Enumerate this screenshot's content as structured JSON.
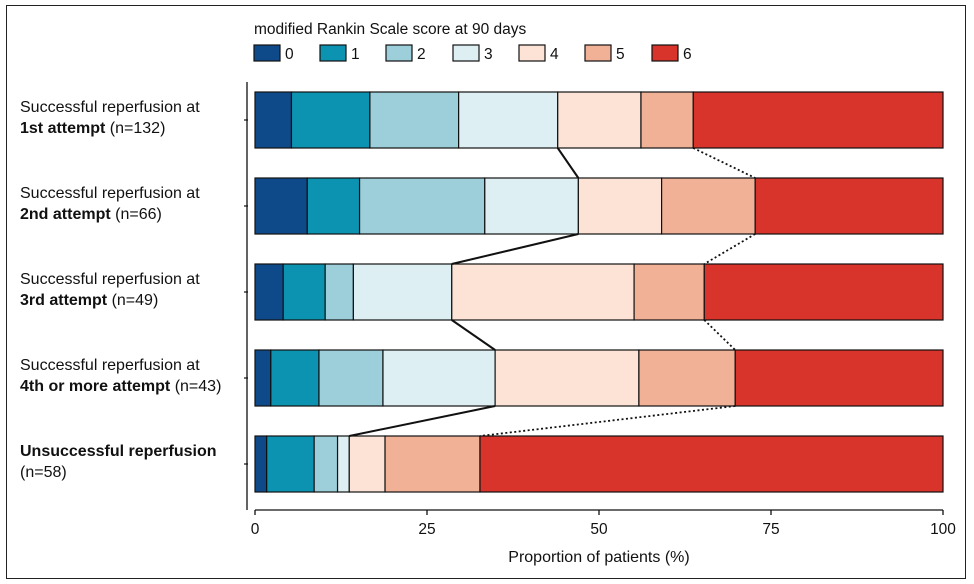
{
  "chart_data": {
    "type": "bar",
    "orientation": "horizontal",
    "stacked": true,
    "legend_title": "modified Rankin Scale score at 90 days",
    "legend_position": "top",
    "xlabel": "Proportion of patients (%)",
    "xlim": [
      0,
      100
    ],
    "xticks": [
      "0",
      "25",
      "50",
      "75",
      "100"
    ],
    "xtick_values": [
      0,
      25,
      50,
      75,
      100
    ],
    "grid": false,
    "categories": [
      {
        "line1": "Successful reperfusion at",
        "bold": "1st attempt",
        "rest": " (n=132)"
      },
      {
        "line1": "Successful reperfusion at",
        "bold": "2nd attempt",
        "rest": " (n=66)"
      },
      {
        "line1": "Successful reperfusion at",
        "bold": "3rd attempt",
        "rest": " (n=49)"
      },
      {
        "line1": "Successful reperfusion at",
        "bold": "4th or more attempt",
        "rest": " (n=43)"
      },
      {
        "bold_line1": "Unsuccessful reperfusion",
        "line2": "(n=58)"
      }
    ],
    "series": [
      {
        "name": "0",
        "color": "#0e4a8a",
        "values": [
          5.3,
          7.6,
          4.1,
          2.3,
          1.7
        ]
      },
      {
        "name": "1",
        "color": "#0d93b2",
        "values": [
          11.4,
          7.6,
          6.1,
          7.0,
          6.9
        ]
      },
      {
        "name": "2",
        "color": "#9ccfda",
        "values": [
          12.9,
          18.2,
          4.1,
          9.3,
          3.4
        ]
      },
      {
        "name": "3",
        "color": "#deeff3",
        "values": [
          14.4,
          13.6,
          14.3,
          16.3,
          1.7
        ]
      },
      {
        "name": "4",
        "color": "#fce3d6",
        "values": [
          12.1,
          12.1,
          26.5,
          20.9,
          5.2
        ]
      },
      {
        "name": "5",
        "color": "#f0b196",
        "values": [
          7.6,
          13.6,
          10.2,
          14.0,
          13.8
        ]
      },
      {
        "name": "6",
        "color": "#d9342b",
        "values": [
          36.3,
          27.3,
          34.7,
          30.2,
          67.3
        ]
      }
    ],
    "connectors": [
      {
        "after_series": 3,
        "style": "solid"
      },
      {
        "after_series": 5,
        "style": "dotted"
      }
    ]
  }
}
